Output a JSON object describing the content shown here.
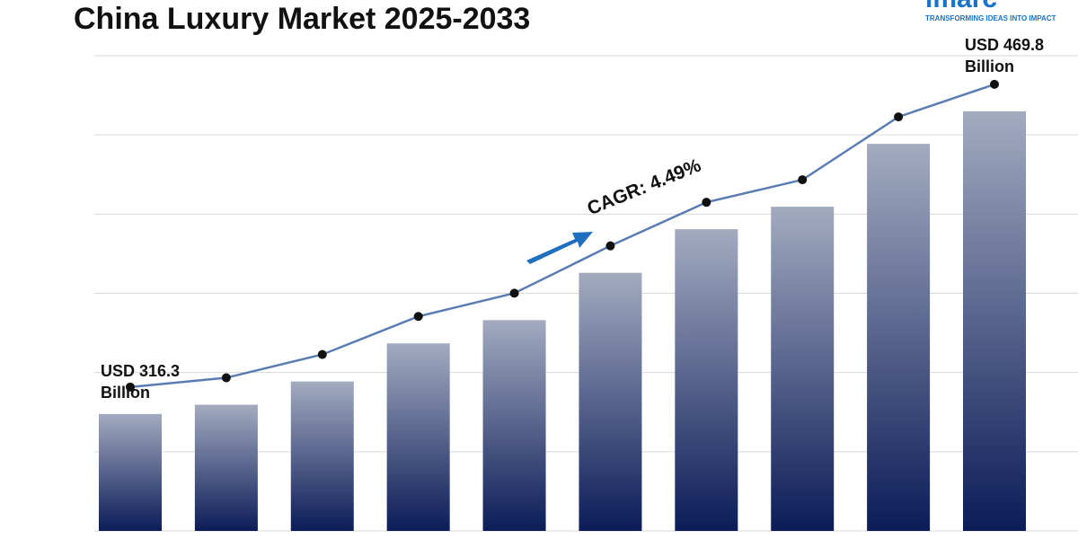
{
  "chart_data": {
    "type": "bar",
    "title": "China Luxury Market 2025-2033",
    "logo": {
      "name": "imarc",
      "tagline": "TRANSFORMING IDEAS INTO IMPACT"
    },
    "annotation": "CAGR: 4.49%",
    "categories": [
      null,
      null,
      null,
      null,
      null,
      null,
      null,
      null,
      null,
      null
    ],
    "values": [
      316.3,
      321.0,
      332.8,
      352.1,
      363.9,
      387.9,
      410.0,
      421.4,
      453.3,
      469.8
    ],
    "value_labels": [
      "USD 316.3 Billion",
      null,
      null,
      null,
      null,
      null,
      null,
      null,
      null,
      "USD 469.8 Billion"
    ],
    "ylim": [
      257,
      498
    ],
    "bar_color_top": "#a3abc0",
    "bar_color_bottom": "#0b1c58",
    "line_color": "#5b7cb3",
    "marker_color": "#111111",
    "grid": true
  }
}
